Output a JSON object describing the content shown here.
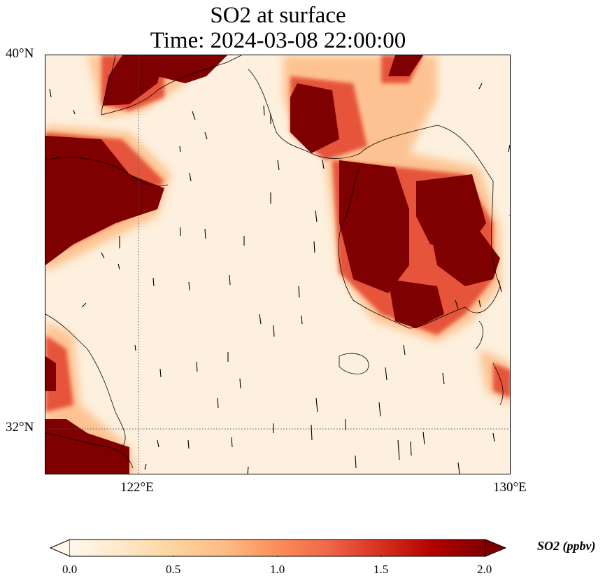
{
  "title": {
    "line1": "SO2 at surface",
    "line2": "Time: 2024-03-08 22:00:00"
  },
  "axes": {
    "lat_ticks": [
      "40°N",
      "32°N"
    ],
    "lon_ticks": [
      "122°E",
      "130°E"
    ]
  },
  "colorbar": {
    "label": "SO2 (ppbv)",
    "ticks": [
      "0.0",
      "0.5",
      "1.0",
      "1.5",
      "2.0"
    ],
    "min": 0.0,
    "max": 2.0,
    "extend": "both",
    "colormap": "OrRd",
    "colors": [
      "#fff7ec",
      "#fee8c8",
      "#fdd49e",
      "#fdbb84",
      "#fc8d59",
      "#ef6548",
      "#d7301f",
      "#b30000",
      "#7f0000"
    ]
  },
  "map": {
    "lat_range": [
      31,
      40
    ],
    "lon_range": [
      120,
      130
    ],
    "gridlines": "dotted at 122°E and 32°N"
  }
}
